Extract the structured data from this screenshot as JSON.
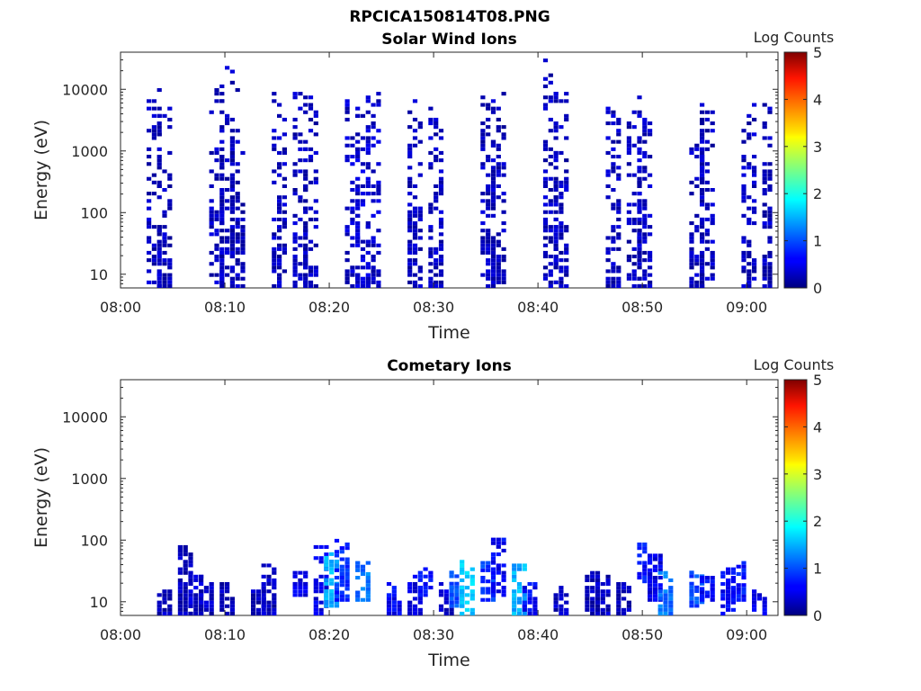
{
  "figure_title": "RPCICA150814T08.PNG",
  "chart_data": [
    {
      "type": "heatmap",
      "title": "Solar Wind Ions",
      "xlabel": "Time",
      "ylabel": "Energy (eV)",
      "y_scale": "log",
      "xlim": [
        "08:00",
        "09:03"
      ],
      "ylim": [
        6,
        40000
      ],
      "x_ticks": [
        "08:00",
        "08:10",
        "08:20",
        "08:30",
        "08:40",
        "08:50",
        "09:00"
      ],
      "y_ticks": [
        10,
        100,
        1000,
        10000
      ],
      "y_tick_labels": [
        "10",
        "100",
        "1000",
        "10000"
      ],
      "colorbar": {
        "label": "Log Counts",
        "range": [
          0,
          5
        ],
        "ticks": [
          "0",
          "1",
          "2",
          "3",
          "4",
          "5"
        ],
        "colormap": "jet"
      },
      "bursts": [
        {
          "t": "08:03",
          "lo": 6,
          "hi": 13000,
          "level": 0.3
        },
        {
          "t": "08:04",
          "lo": 6,
          "hi": 5000,
          "level": 0.3
        },
        {
          "t": "08:09",
          "lo": 6,
          "hi": 10000,
          "level": 0.3
        },
        {
          "t": "08:10",
          "lo": 6,
          "hi": 30000,
          "level": 0.3
        },
        {
          "t": "08:11",
          "lo": 6,
          "hi": 10000,
          "level": 0.3
        },
        {
          "t": "08:15",
          "lo": 6,
          "hi": 10000,
          "level": 0.3
        },
        {
          "t": "08:17",
          "lo": 6,
          "hi": 13000,
          "level": 0.3
        },
        {
          "t": "08:18",
          "lo": 6,
          "hi": 8000,
          "level": 0.3
        },
        {
          "t": "08:22",
          "lo": 6,
          "hi": 7000,
          "level": 0.35
        },
        {
          "t": "08:23",
          "lo": 6,
          "hi": 6000,
          "level": 0.4
        },
        {
          "t": "08:24",
          "lo": 6,
          "hi": 9000,
          "level": 0.35
        },
        {
          "t": "08:28",
          "lo": 6,
          "hi": 7000,
          "level": 0.3
        },
        {
          "t": "08:30",
          "lo": 6,
          "hi": 7000,
          "level": 0.3
        },
        {
          "t": "08:35",
          "lo": 6,
          "hi": 7000,
          "level": 0.3
        },
        {
          "t": "08:36",
          "lo": 6,
          "hi": 8000,
          "level": 0.3
        },
        {
          "t": "08:41",
          "lo": 6,
          "hi": 33000,
          "level": 0.3
        },
        {
          "t": "08:42",
          "lo": 6,
          "hi": 9000,
          "level": 0.3
        },
        {
          "t": "08:47",
          "lo": 6,
          "hi": 10000,
          "level": 0.3
        },
        {
          "t": "08:49",
          "lo": 6,
          "hi": 9000,
          "level": 0.3
        },
        {
          "t": "08:50",
          "lo": 6,
          "hi": 6000,
          "level": 0.3
        },
        {
          "t": "08:55",
          "lo": 6,
          "hi": 6000,
          "level": 0.3
        },
        {
          "t": "08:56",
          "lo": 6,
          "hi": 4000,
          "level": 0.3
        },
        {
          "t": "09:00",
          "lo": 6,
          "hi": 6000,
          "level": 0.3
        },
        {
          "t": "09:02",
          "lo": 6,
          "hi": 9000,
          "level": 0.3
        }
      ]
    },
    {
      "type": "heatmap",
      "title": "Cometary Ions",
      "xlabel": "Time",
      "ylabel": "Energy (eV)",
      "y_scale": "log",
      "xlim": [
        "08:00",
        "09:03"
      ],
      "ylim": [
        6,
        40000
      ],
      "x_ticks": [
        "08:00",
        "08:10",
        "08:20",
        "08:30",
        "08:40",
        "08:50",
        "09:00"
      ],
      "y_ticks": [
        10,
        100,
        1000,
        10000
      ],
      "y_tick_labels": [
        "10",
        "100",
        "1000",
        "10000"
      ],
      "colorbar": {
        "label": "Log Counts",
        "range": [
          0,
          5
        ],
        "ticks": [
          "0",
          "1",
          "2",
          "3",
          "4",
          "5"
        ],
        "colormap": "jet"
      },
      "bursts": [
        {
          "t": "08:04",
          "lo": 6,
          "hi": 18,
          "level": 0.3
        },
        {
          "t": "08:06",
          "lo": 6,
          "hi": 80,
          "level": 0.3
        },
        {
          "t": "08:07",
          "lo": 6,
          "hi": 30,
          "level": 0.4
        },
        {
          "t": "08:08",
          "lo": 6,
          "hi": 25,
          "level": 0.3
        },
        {
          "t": "08:10",
          "lo": 6,
          "hi": 20,
          "level": 0.3
        },
        {
          "t": "08:13",
          "lo": 6,
          "hi": 18,
          "level": 0.3
        },
        {
          "t": "08:14",
          "lo": 6,
          "hi": 40,
          "level": 0.3
        },
        {
          "t": "08:17",
          "lo": 12,
          "hi": 30,
          "level": 0.5
        },
        {
          "t": "08:19",
          "lo": 6,
          "hi": 80,
          "level": 0.5
        },
        {
          "t": "08:20",
          "lo": 8,
          "hi": 60,
          "level": 1.5
        },
        {
          "t": "08:21",
          "lo": 10,
          "hi": 100,
          "level": 0.8
        },
        {
          "t": "08:23",
          "lo": 10,
          "hi": 40,
          "level": 1.2
        },
        {
          "t": "08:26",
          "lo": 6,
          "hi": 20,
          "level": 0.6
        },
        {
          "t": "08:28",
          "lo": 6,
          "hi": 25,
          "level": 0.5
        },
        {
          "t": "08:29",
          "lo": 12,
          "hi": 35,
          "level": 0.7
        },
        {
          "t": "08:31",
          "lo": 6,
          "hi": 20,
          "level": 0.4
        },
        {
          "t": "08:32",
          "lo": 8,
          "hi": 30,
          "level": 1.0
        },
        {
          "t": "08:33",
          "lo": 6,
          "hi": 50,
          "level": 1.6
        },
        {
          "t": "08:35",
          "lo": 10,
          "hi": 40,
          "level": 0.9
        },
        {
          "t": "08:36",
          "lo": 12,
          "hi": 100,
          "level": 0.6
        },
        {
          "t": "08:38",
          "lo": 6,
          "hi": 40,
          "level": 1.5
        },
        {
          "t": "08:39",
          "lo": 6,
          "hi": 20,
          "level": 0.6
        },
        {
          "t": "08:42",
          "lo": 6,
          "hi": 18,
          "level": 0.3
        },
        {
          "t": "08:45",
          "lo": 6,
          "hi": 30,
          "level": 0.3
        },
        {
          "t": "08:46",
          "lo": 6,
          "hi": 25,
          "level": 0.3
        },
        {
          "t": "08:48",
          "lo": 6,
          "hi": 25,
          "level": 0.3
        },
        {
          "t": "08:50",
          "lo": 20,
          "hi": 80,
          "level": 0.7
        },
        {
          "t": "08:51",
          "lo": 10,
          "hi": 60,
          "level": 0.5
        },
        {
          "t": "08:52",
          "lo": 6,
          "hi": 30,
          "level": 1.2
        },
        {
          "t": "08:55",
          "lo": 8,
          "hi": 30,
          "level": 1.0
        },
        {
          "t": "08:56",
          "lo": 10,
          "hi": 25,
          "level": 0.6
        },
        {
          "t": "08:58",
          "lo": 6,
          "hi": 40,
          "level": 0.6
        },
        {
          "t": "08:59",
          "lo": 10,
          "hi": 40,
          "level": 0.7
        },
        {
          "t": "09:01",
          "lo": 6,
          "hi": 18,
          "level": 0.5
        }
      ]
    }
  ]
}
